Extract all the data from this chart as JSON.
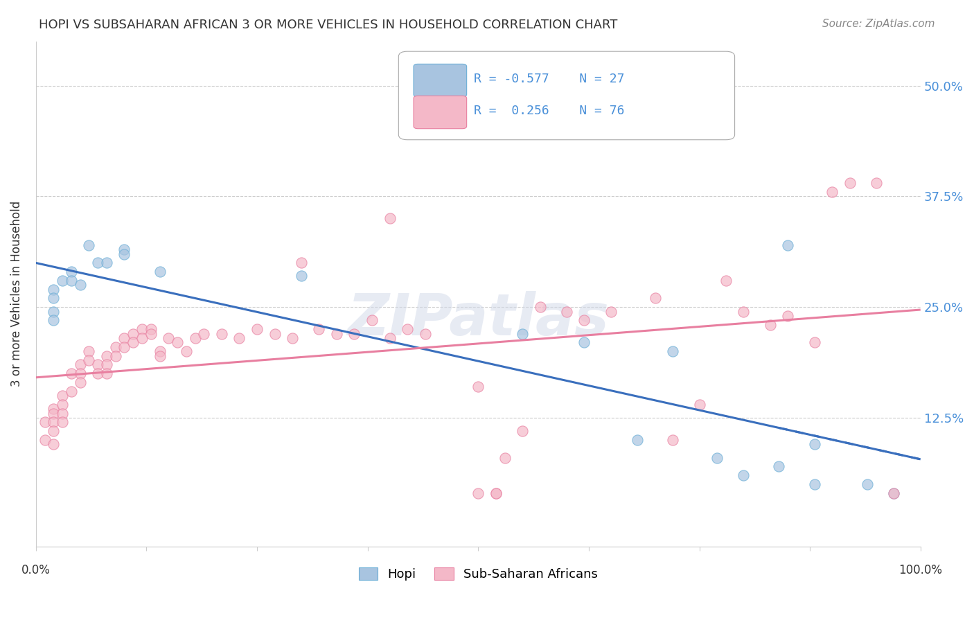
{
  "title": "HOPI VS SUBSAHARAN AFRICAN 3 OR MORE VEHICLES IN HOUSEHOLD CORRELATION CHART",
  "source": "Source: ZipAtlas.com",
  "ylabel": "3 or more Vehicles in Household",
  "ytick_labels": [
    "",
    "12.5%",
    "25.0%",
    "37.5%",
    "50.0%"
  ],
  "ytick_values": [
    0.0,
    0.125,
    0.25,
    0.375,
    0.5
  ],
  "xlim": [
    0.0,
    1.0
  ],
  "ylim": [
    -0.02,
    0.55
  ],
  "hopi_color": "#a8c4e0",
  "hopi_edge_color": "#6aaed6",
  "subsaharan_color": "#f4b8c8",
  "subsaharan_edge_color": "#e87fa0",
  "hopi_line_color": "#3a6fbd",
  "subsaharan_line_color": "#e87fa0",
  "watermark": "ZIPatlas",
  "hopi_x": [
    0.02,
    0.02,
    0.02,
    0.02,
    0.03,
    0.04,
    0.04,
    0.05,
    0.06,
    0.07,
    0.08,
    0.1,
    0.1,
    0.14,
    0.3,
    0.55,
    0.62,
    0.68,
    0.72,
    0.77,
    0.8,
    0.84,
    0.85,
    0.88,
    0.88,
    0.94,
    0.97
  ],
  "hopi_y": [
    0.27,
    0.26,
    0.245,
    0.235,
    0.28,
    0.29,
    0.28,
    0.275,
    0.32,
    0.3,
    0.3,
    0.315,
    0.31,
    0.29,
    0.285,
    0.22,
    0.21,
    0.1,
    0.2,
    0.08,
    0.06,
    0.07,
    0.32,
    0.095,
    0.05,
    0.05,
    0.04
  ],
  "subsaharan_x": [
    0.01,
    0.01,
    0.02,
    0.02,
    0.02,
    0.02,
    0.02,
    0.03,
    0.03,
    0.03,
    0.03,
    0.04,
    0.04,
    0.05,
    0.05,
    0.05,
    0.06,
    0.06,
    0.07,
    0.07,
    0.08,
    0.08,
    0.08,
    0.09,
    0.09,
    0.1,
    0.1,
    0.11,
    0.11,
    0.12,
    0.12,
    0.13,
    0.13,
    0.14,
    0.14,
    0.15,
    0.16,
    0.17,
    0.18,
    0.19,
    0.21,
    0.23,
    0.25,
    0.27,
    0.29,
    0.32,
    0.34,
    0.36,
    0.38,
    0.4,
    0.42,
    0.44,
    0.5,
    0.52,
    0.55,
    0.57,
    0.6,
    0.62,
    0.65,
    0.7,
    0.72,
    0.75,
    0.78,
    0.8,
    0.83,
    0.85,
    0.88,
    0.9,
    0.92,
    0.95,
    0.97,
    0.5,
    0.52,
    0.53,
    0.3,
    0.4
  ],
  "subsaharan_y": [
    0.12,
    0.1,
    0.135,
    0.13,
    0.12,
    0.11,
    0.095,
    0.15,
    0.14,
    0.13,
    0.12,
    0.175,
    0.155,
    0.185,
    0.175,
    0.165,
    0.2,
    0.19,
    0.185,
    0.175,
    0.195,
    0.185,
    0.175,
    0.205,
    0.195,
    0.215,
    0.205,
    0.22,
    0.21,
    0.225,
    0.215,
    0.225,
    0.22,
    0.2,
    0.195,
    0.215,
    0.21,
    0.2,
    0.215,
    0.22,
    0.22,
    0.215,
    0.225,
    0.22,
    0.215,
    0.225,
    0.22,
    0.22,
    0.235,
    0.215,
    0.225,
    0.22,
    0.16,
    0.04,
    0.11,
    0.25,
    0.245,
    0.235,
    0.245,
    0.26,
    0.1,
    0.14,
    0.28,
    0.245,
    0.23,
    0.24,
    0.21,
    0.38,
    0.39,
    0.39,
    0.04,
    0.04,
    0.04,
    0.08,
    0.3,
    0.35
  ],
  "marker_size": 120,
  "marker_alpha": 0.7,
  "line_width": 2.2,
  "background_color": "#ffffff",
  "grid_color": "#cccccc"
}
